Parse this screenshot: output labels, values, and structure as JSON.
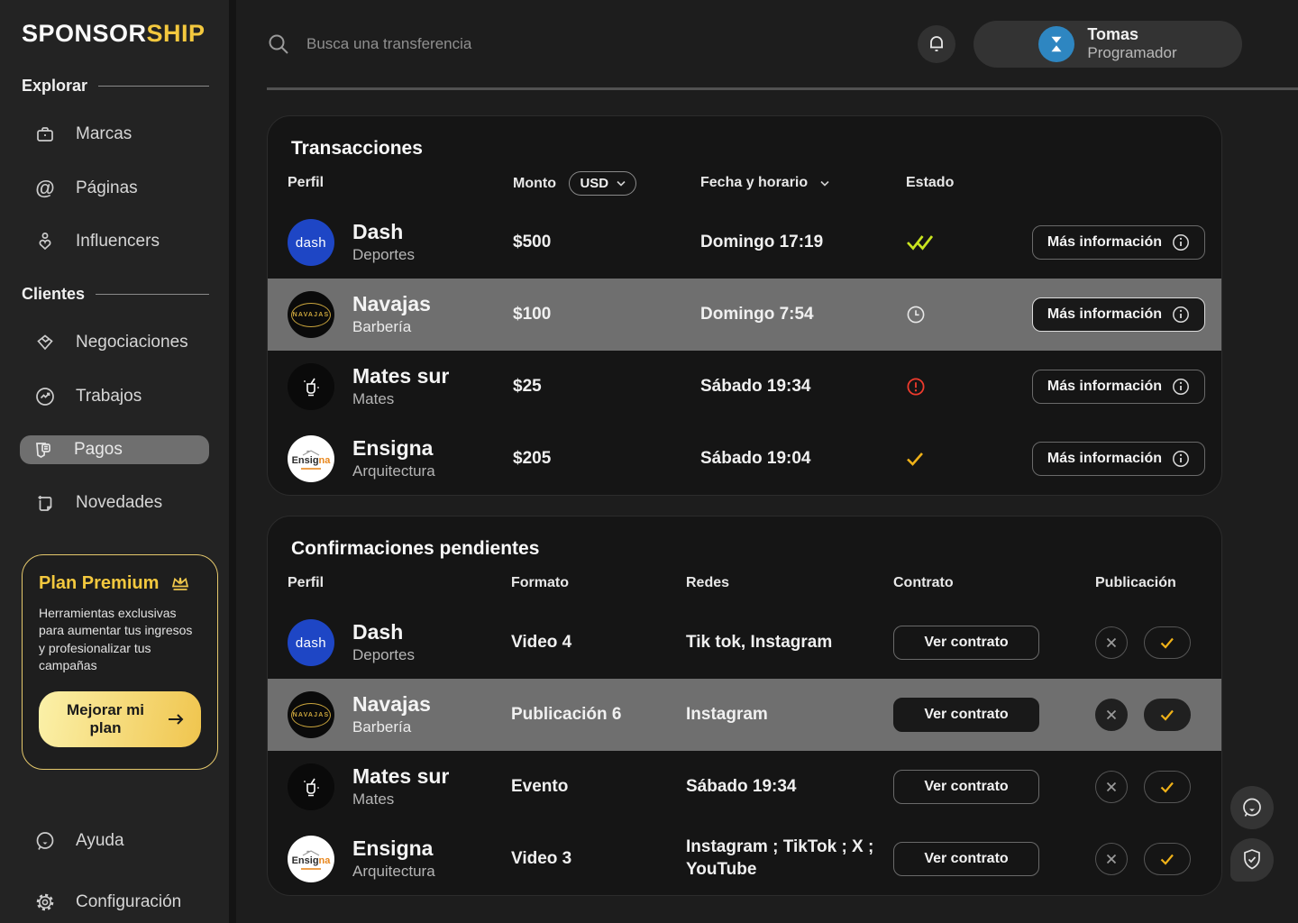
{
  "brand": {
    "primary": "SPONSOR",
    "accent": "SHIP"
  },
  "sidebar": {
    "sections": [
      {
        "label": "Explorar",
        "items": [
          {
            "label": "Marcas",
            "icon": "briefcase-icon"
          },
          {
            "label": "Páginas",
            "icon": "at-icon"
          },
          {
            "label": "Influencers",
            "icon": "influencer-icon"
          }
        ]
      },
      {
        "label": "Clientes",
        "items": [
          {
            "label": "Negociaciones",
            "icon": "handshake-icon"
          },
          {
            "label": "Trabajos",
            "icon": "trend-circle-icon"
          },
          {
            "label": "Pagos",
            "icon": "payments-icon",
            "active": true
          },
          {
            "label": "Novedades",
            "icon": "news-icon"
          }
        ]
      }
    ],
    "premium": {
      "title": "Plan Premium",
      "description": "Herramientas exclusivas para aumentar tus ingresos y profesionalizar tus campañas",
      "cta": "Mejorar mi plan"
    },
    "footer": [
      {
        "label": "Ayuda",
        "icon": "help-chat-icon"
      },
      {
        "label": "Configuración",
        "icon": "gear-icon"
      }
    ]
  },
  "topbar": {
    "search_placeholder": "Busca una transferencia",
    "user": {
      "name": "Tomas",
      "role": "Programador"
    }
  },
  "avatars": {
    "dash": {
      "bg": "#1E46C5",
      "label": "dash"
    },
    "navajas": {
      "bg": "#0a0a0a",
      "label": "NAVAJAS",
      "accent": "#C9A43C"
    },
    "matesur": {
      "bg": "#0a0a0a",
      "icon": "mate-cup-icon"
    },
    "ensigna": {
      "bg": "#ffffff",
      "label_primary": "Ensig",
      "label_accent": "na",
      "accent": "#E8871E"
    }
  },
  "transactions": {
    "title": "Transacciones",
    "columns": {
      "perfil": "Perfil",
      "monto": "Monto",
      "currency": "USD",
      "fecha": "Fecha y horario",
      "estado": "Estado"
    },
    "action_label": "Más información",
    "rows": [
      {
        "name": "Dash",
        "category": "Deportes",
        "amount": "$500",
        "datetime": "Domingo 17:19",
        "status": "double-check-icon",
        "avatar": "dash",
        "selected": false
      },
      {
        "name": "Navajas",
        "category": "Barbería",
        "amount": "$100",
        "datetime": "Domingo 7:54",
        "status": "clock-icon",
        "avatar": "navajas",
        "selected": true
      },
      {
        "name": "Mates sur",
        "category": "Mates",
        "amount": "$25",
        "datetime": "Sábado 19:34",
        "status": "alert-icon",
        "avatar": "matesur",
        "selected": false
      },
      {
        "name": "Ensigna",
        "category": "Arquitectura",
        "amount": "$205",
        "datetime": "Sábado 19:04",
        "status": "check-icon",
        "avatar": "ensigna",
        "selected": false
      }
    ]
  },
  "confirmations": {
    "title": "Confirmaciones pendientes",
    "columns": {
      "perfil": "Perfil",
      "formato": "Formato",
      "redes": "Redes",
      "contrato": "Contrato",
      "publicacion": "Publicación"
    },
    "action_label": "Ver contrato",
    "rows": [
      {
        "name": "Dash",
        "category": "Deportes",
        "formato": "Video 4",
        "redes": "Tik tok, Instagram",
        "avatar": "dash",
        "selected": false
      },
      {
        "name": "Navajas",
        "category": "Barbería",
        "formato": "Publicación 6",
        "redes": "Instagram",
        "avatar": "navajas",
        "selected": true
      },
      {
        "name": "Mates sur",
        "category": "Mates",
        "formato": "Evento",
        "redes": "Sábado 19:34",
        "avatar": "matesur",
        "selected": false
      },
      {
        "name": "Ensigna",
        "category": "Arquitectura",
        "formato": "Video 3",
        "redes": "Instagram ; TikTok ; X ; YouTube",
        "avatar": "ensigna",
        "selected": false
      }
    ]
  },
  "colors": {
    "accent_yellow": "#F3C83E",
    "lime_status": "#C9E41F",
    "red_status": "#EF3B2D",
    "amber_status": "#EFB118",
    "selected_row": "#6F6F6F",
    "dash_blue": "#1E46C5",
    "user_avatar_blue": "#2E86C1",
    "card_bg": "#151515",
    "sidebar_bg": "#232323",
    "main_bg": "#1D1D1D"
  }
}
